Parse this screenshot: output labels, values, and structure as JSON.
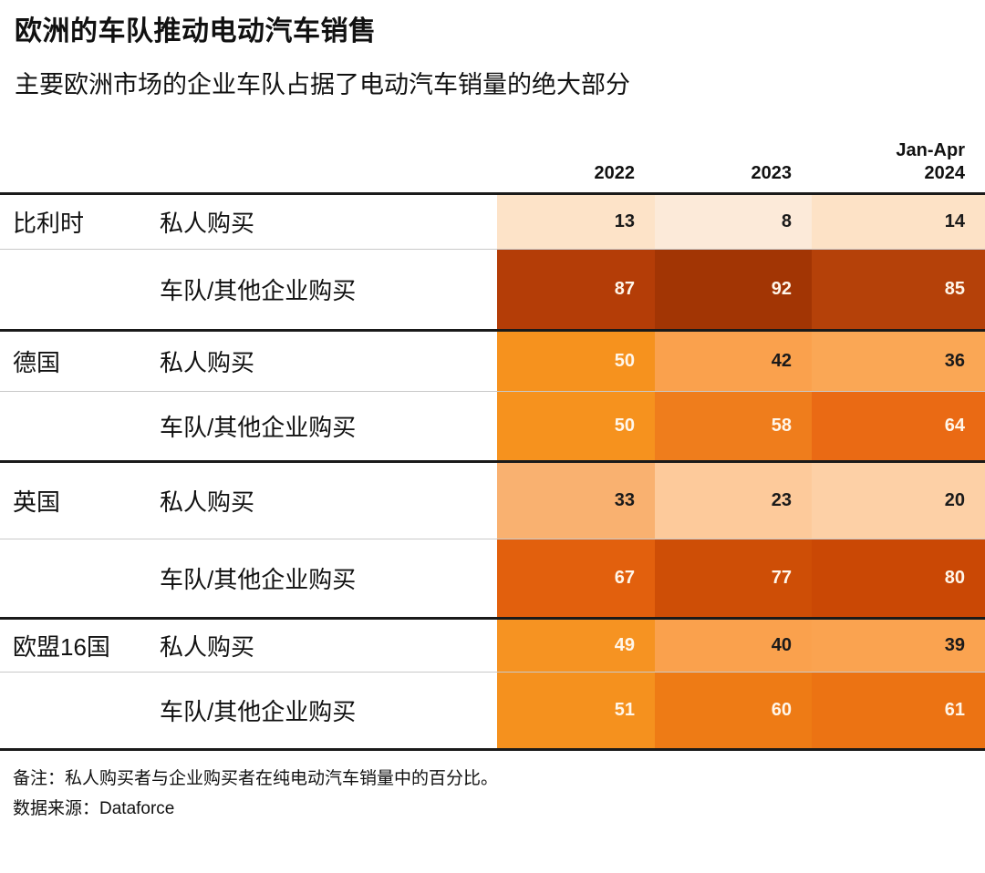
{
  "chart_data": {
    "type": "heatmap",
    "title": "欧洲的车队推动电动汽车销售",
    "subtitle": "主要欧洲市场的企业车队占据了电动汽车销量的绝大部分",
    "unit": "%",
    "columns": [
      "2022",
      "2023",
      "Jan-Apr 2024"
    ],
    "row_labels": [
      "私人购买",
      "车队/其他企业购买"
    ],
    "groups": [
      {
        "country": "比利时",
        "rows": [
          {
            "label": "私人购买",
            "values": [
              13,
              8,
              14
            ],
            "cell_colors": [
              "#fde3c8",
              "#fcead9",
              "#fde2c6"
            ],
            "text_colors": [
              "#1a1a1a",
              "#1a1a1a",
              "#1a1a1a"
            ]
          },
          {
            "label": "车队/其他企业购买",
            "values": [
              87,
              92,
              85
            ],
            "cell_colors": [
              "#b43d07",
              "#a23504",
              "#b54109"
            ],
            "text_colors": [
              "#fff6ea",
              "#fff6ea",
              "#fff6ea"
            ]
          }
        ]
      },
      {
        "country": "德国",
        "rows": [
          {
            "label": "私人购买",
            "values": [
              50,
              42,
              36
            ],
            "cell_colors": [
              "#f6921e",
              "#faa14d",
              "#faa755"
            ],
            "text_colors": [
              "#fff6ea",
              "#1a1a1a",
              "#1a1a1a"
            ]
          },
          {
            "label": "车队/其他企业购买",
            "values": [
              50,
              58,
              64
            ],
            "cell_colors": [
              "#f6921e",
              "#ef7d1c",
              "#ea6a14"
            ],
            "text_colors": [
              "#fff6ea",
              "#fff6ea",
              "#fff6ea"
            ]
          }
        ]
      },
      {
        "country": "英国",
        "rows": [
          {
            "label": "私人购买",
            "values": [
              33,
              23,
              20
            ],
            "cell_colors": [
              "#f9b170",
              "#fdca9b",
              "#fdd0a6"
            ],
            "text_colors": [
              "#1a1a1a",
              "#1a1a1a",
              "#1a1a1a"
            ]
          },
          {
            "label": "车队/其他企业购买",
            "values": [
              67,
              77,
              80
            ],
            "cell_colors": [
              "#e2600d",
              "#ce4e06",
              "#ca4805"
            ],
            "text_colors": [
              "#fff6ea",
              "#fff6ea",
              "#fff6ea"
            ]
          }
        ]
      },
      {
        "country": "欧盟16国",
        "rows": [
          {
            "label": "私人购买",
            "values": [
              49,
              40,
              39
            ],
            "cell_colors": [
              "#f69322",
              "#faa14d",
              "#faa350"
            ],
            "text_colors": [
              "#fff6ea",
              "#1a1a1a",
              "#1a1a1a"
            ]
          },
          {
            "label": "车队/其他企业购买",
            "values": [
              51,
              60,
              61
            ],
            "cell_colors": [
              "#f5911e",
              "#ee7b15",
              "#ec7313"
            ],
            "text_colors": [
              "#fff6ea",
              "#fff6ea",
              "#fff6ea"
            ]
          }
        ]
      }
    ],
    "note": "备注：私人购买者与企业购买者在纯电动汽车销量中的百分比。",
    "source": "数据来源：Dataforce",
    "color_scale": [
      "#fcead9",
      "#a23504"
    ]
  }
}
